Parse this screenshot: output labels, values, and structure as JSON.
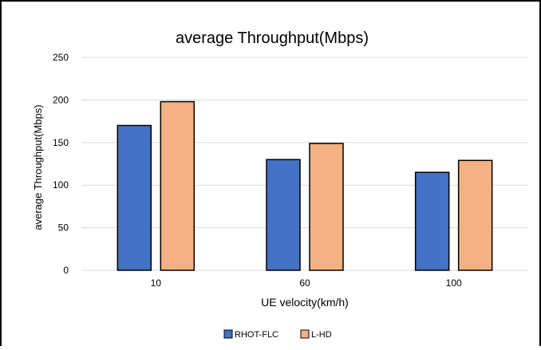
{
  "chart_data": {
    "type": "bar",
    "title": "average Throughput(Mbps)",
    "xlabel": "UE velocity(km/h)",
    "ylabel": "average Throughput(Mbps)",
    "categories": [
      "10",
      "60",
      "100"
    ],
    "series": [
      {
        "name": "RHOT-FLC",
        "values": [
          170,
          130,
          115
        ],
        "color": "#4472C4"
      },
      {
        "name": "L-HD",
        "values": [
          198,
          149,
          129
        ],
        "color": "#F4B183"
      }
    ],
    "ylim": [
      0,
      250
    ],
    "yticks": [
      0,
      50,
      100,
      150,
      200,
      250
    ],
    "grid": true,
    "legend_position": "bottom-center",
    "bar_edge_color": "#000000"
  }
}
